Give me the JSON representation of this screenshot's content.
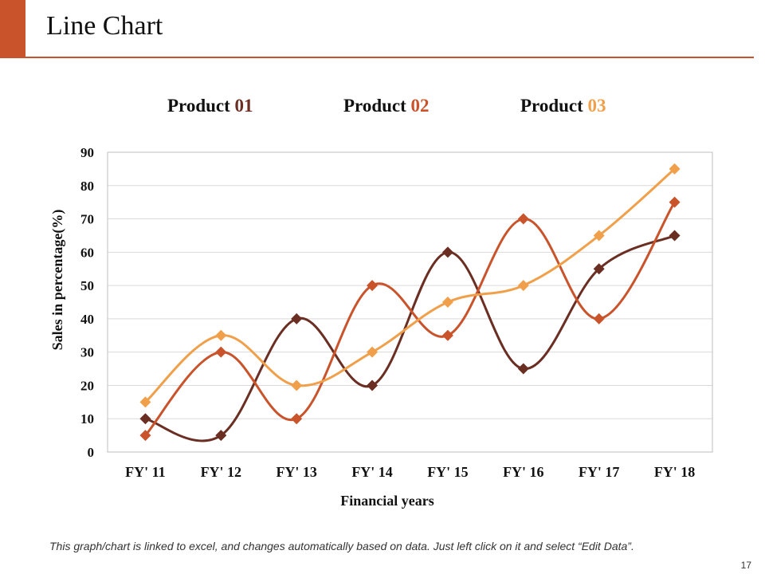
{
  "slide": {
    "title": "Line Chart",
    "footnote": "This graph/chart is linked to excel, and changes automatically based on data. Just left click on it and select “Edit Data”.",
    "page_number": "17",
    "accent_color": "#C9532B"
  },
  "legend": [
    {
      "label": "Product ",
      "num": "01",
      "color": "#6B2E22"
    },
    {
      "label": "Product ",
      "num": "02",
      "color": "#C9532B"
    },
    {
      "label": "Product ",
      "num": "03",
      "color": "#F0A04B"
    }
  ],
  "chart_data": {
    "type": "line",
    "title": "",
    "xlabel": "Financial years",
    "ylabel": "Sales in percentage(%)",
    "categories": [
      "FY' 11",
      "FY' 12",
      "FY' 13",
      "FY' 14",
      "FY' 15",
      "FY' 16",
      "FY' 17",
      "FY' 18"
    ],
    "ylim": [
      0,
      90
    ],
    "yticks": [
      "0",
      "10",
      "20",
      "30",
      "40",
      "50",
      "60",
      "70",
      "80",
      "90"
    ],
    "grid": true,
    "series": [
      {
        "name": "Product 01",
        "color": "#6B2E22",
        "values": [
          10,
          5,
          40,
          20,
          60,
          25,
          55,
          65
        ]
      },
      {
        "name": "Product 02",
        "color": "#C9532B",
        "values": [
          5,
          30,
          10,
          50,
          35,
          70,
          40,
          75
        ]
      },
      {
        "name": "Product 03",
        "color": "#F0A04B",
        "values": [
          15,
          35,
          20,
          30,
          45,
          50,
          65,
          85
        ]
      }
    ]
  }
}
